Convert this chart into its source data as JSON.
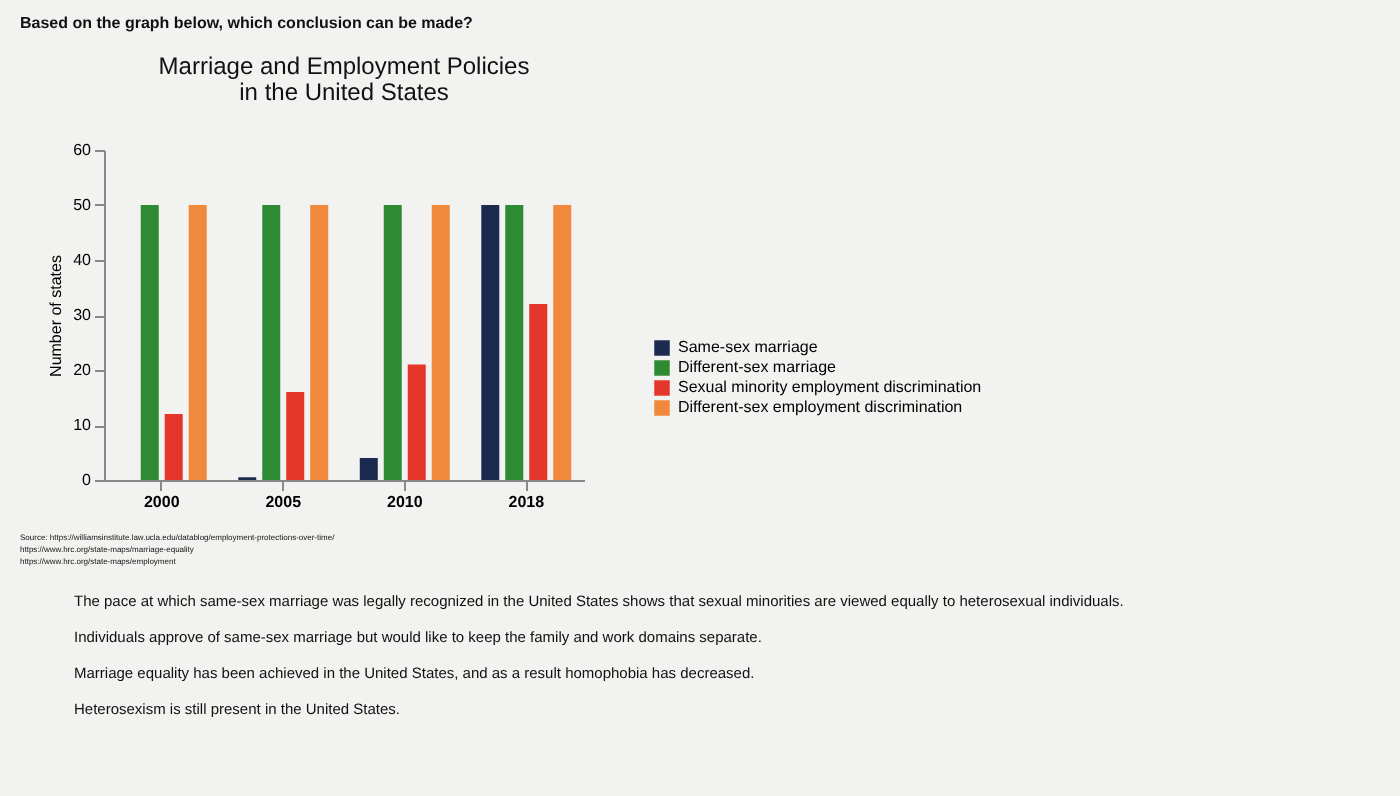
{
  "chart_data": {
    "type": "bar",
    "title": "Marriage and Employment Policies\nin the United States",
    "ylabel": "Number of states",
    "categories": [
      "2000",
      "2005",
      "2010",
      "2018"
    ],
    "series": [
      {
        "name": "Same-sex marriage",
        "color": "#1b2a4e",
        "values": [
          0,
          0.5,
          4,
          50
        ]
      },
      {
        "name": "Different-sex marriage",
        "color": "#2f8a34",
        "values": [
          50,
          50,
          50,
          50
        ]
      },
      {
        "name": "Sexual minority employment discrimination",
        "color": "#e5362c",
        "values": [
          12,
          16,
          21,
          32
        ]
      },
      {
        "name": "Different-sex employment discrimination",
        "color": "#f0893c",
        "values": [
          50,
          50,
          50,
          50
        ]
      }
    ],
    "ylim": [
      0,
      60
    ],
    "yticks": [
      0,
      10,
      20,
      30,
      40,
      50,
      60
    ],
    "grid": false,
    "legend": "right",
    "annotations": [
      "Based on the graph below, which conclusion can be made?",
      "Source: https://williamsinstitute.law.ucla.edu/datablog/employment-protections-over-time/",
      "https://www.hrc.org/state-maps/marriage-equality",
      "https://www.hrc.org/state-maps/employment",
      "The pace at which same-sex marriage was legally recognized in the United States shows that sexual minorities are viewed equally to heterosexual individuals.",
      "Individuals approve of same-sex marriage but would like to keep the family and work domains separate.",
      "Marriage equality has been achieved in the United States, and as a result homophobia has decreased.",
      "Heterosexism is still present in the United States."
    ]
  }
}
